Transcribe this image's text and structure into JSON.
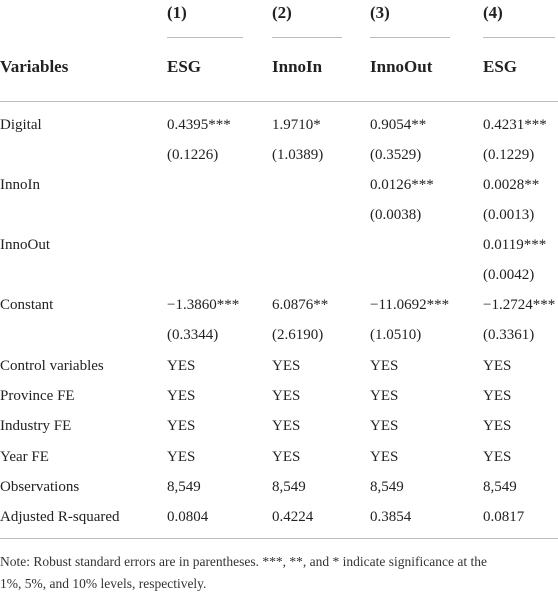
{
  "header": {
    "numbers": [
      "(1)",
      "(2)",
      "(3)",
      "(4)"
    ],
    "labels": [
      "Variables",
      "ESG",
      "InnoIn",
      "InnoOut",
      "ESG"
    ]
  },
  "table": {
    "rows": [
      [
        "Digital",
        "0.4395***",
        "1.9710*",
        "0.9054**",
        "0.4231***"
      ],
      [
        null,
        "(0.1226)",
        "(1.0389)",
        "(0.3529)",
        "(0.1229)"
      ],
      [
        "InnoIn",
        null,
        null,
        "0.0126***",
        "0.0028**"
      ],
      [
        null,
        null,
        null,
        "(0.0038)",
        "(0.0013)"
      ],
      [
        "InnoOut",
        null,
        null,
        null,
        "0.0119***"
      ],
      [
        null,
        null,
        null,
        null,
        "(0.0042)"
      ],
      [
        "Constant",
        "−1.3860***",
        "6.0876**",
        "−11.0692***",
        "−1.2724***"
      ],
      [
        null,
        "(0.3344)",
        "(2.6190)",
        "(1.0510)",
        "(0.3361)"
      ],
      [
        "Control variables",
        "YES",
        "YES",
        "YES",
        "YES"
      ],
      [
        "Province FE",
        "YES",
        "YES",
        "YES",
        "YES"
      ],
      [
        "Industry FE",
        "YES",
        "YES",
        "YES",
        "YES"
      ],
      [
        "Year FE",
        "YES",
        "YES",
        "YES",
        "YES"
      ],
      [
        "Observations",
        "8,549",
        "8,549",
        "8,549",
        "8,549"
      ],
      [
        "Adjusted R-squared",
        "0.0804",
        "0.4224",
        "0.3854",
        "0.0817"
      ]
    ]
  },
  "note": [
    "Note: Robust standard errors are in parentheses. ***, **, and * indicate significance at the",
    "1%, 5%, and 10% levels, respectively."
  ]
}
